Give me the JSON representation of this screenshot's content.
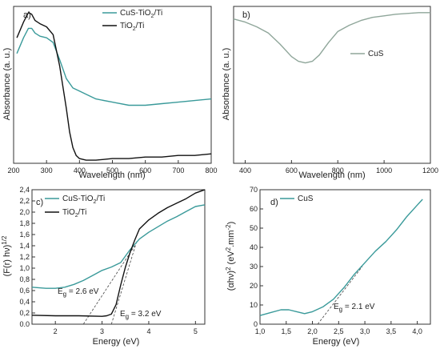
{
  "colors": {
    "teal": "#3a9a9a",
    "black": "#111111",
    "axis": "#333333"
  },
  "chart_data": [
    {
      "type": "line",
      "panel_label": "a)",
      "xlabel": "Wavelength (nm)",
      "ylabel": "Absorbance (a. u.)",
      "xlim": [
        200,
        800
      ],
      "ylim": [
        0,
        1
      ],
      "xticks": [
        200,
        300,
        400,
        500,
        600,
        700,
        800
      ],
      "y_ticks_shown": false,
      "legend": {
        "placement": "top-right",
        "entries": [
          {
            "series": 0,
            "label": "CuS-TiO",
            "sub": "2",
            "tail": "/Ti"
          },
          {
            "series": 1,
            "label": "TiO",
            "sub": "2",
            "tail": "/Ti"
          }
        ]
      },
      "series": [
        {
          "name": "CuS-TiO2/Ti",
          "color": "#3a9a9a",
          "x": [
            210,
            230,
            245,
            255,
            265,
            280,
            300,
            320,
            340,
            360,
            380,
            400,
            420,
            450,
            500,
            550,
            600,
            650,
            700,
            750,
            800
          ],
          "y": [
            0.7,
            0.8,
            0.86,
            0.86,
            0.83,
            0.81,
            0.8,
            0.77,
            0.66,
            0.54,
            0.48,
            0.46,
            0.44,
            0.41,
            0.39,
            0.37,
            0.37,
            0.38,
            0.39,
            0.4,
            0.41
          ]
        },
        {
          "name": "TiO2/Ti",
          "color": "#111111",
          "x": [
            210,
            230,
            245,
            255,
            265,
            280,
            300,
            320,
            340,
            360,
            370,
            380,
            390,
            400,
            420,
            450,
            500,
            550,
            600,
            650,
            700,
            750,
            800
          ],
          "y": [
            0.8,
            0.9,
            0.96,
            0.95,
            0.91,
            0.89,
            0.87,
            0.82,
            0.62,
            0.35,
            0.2,
            0.1,
            0.05,
            0.03,
            0.02,
            0.02,
            0.03,
            0.03,
            0.04,
            0.04,
            0.05,
            0.05,
            0.06
          ]
        }
      ]
    },
    {
      "type": "line",
      "panel_label": "b)",
      "xlabel": "Wavelength (nm)",
      "ylabel": "Absorbance (a. u.)",
      "xlim": [
        350,
        1200
      ],
      "ylim": [
        0,
        1
      ],
      "xticks": [
        400,
        600,
        800,
        1000,
        1200
      ],
      "y_ticks_shown": false,
      "legend": {
        "placement": "right",
        "entries": [
          {
            "series": 0,
            "label": "CuS",
            "sub": "",
            "tail": ""
          }
        ]
      },
      "series": [
        {
          "name": "CuS",
          "color": "#8fa69a",
          "x": [
            350,
            400,
            450,
            500,
            550,
            600,
            630,
            660,
            690,
            720,
            760,
            800,
            850,
            900,
            950,
            1000,
            1050,
            1100,
            1150,
            1200
          ],
          "y": [
            0.92,
            0.9,
            0.87,
            0.83,
            0.76,
            0.68,
            0.65,
            0.64,
            0.65,
            0.69,
            0.77,
            0.84,
            0.88,
            0.91,
            0.93,
            0.94,
            0.95,
            0.955,
            0.96,
            0.96
          ]
        }
      ]
    },
    {
      "type": "line",
      "panel_label": "c)",
      "xlabel": "Energy (eV)",
      "ylabel": "(F(r) hν)",
      "ylabel_sup": "1/2",
      "xlim": [
        1.5,
        5.2
      ],
      "ylim": [
        0.0,
        2.4
      ],
      "xticks": [
        2,
        3,
        4,
        5
      ],
      "yticks": [
        0.0,
        0.2,
        0.4,
        0.6,
        0.8,
        1.0,
        1.2,
        1.4,
        1.6,
        1.8,
        2.0,
        2.2,
        2.4
      ],
      "ytick_labels": [
        "0.0",
        "0,2",
        "0,4",
        "0,6",
        "0,8",
        "1,0",
        "1,2",
        "1,4",
        "1,6",
        "1,8",
        "2,0",
        "2,2",
        "2,4"
      ],
      "legend": {
        "placement": "top-left",
        "entries": [
          {
            "series": 0,
            "label": "CuS-TiO",
            "sub": "2",
            "tail": "/Ti"
          },
          {
            "series": 1,
            "label": "TiO",
            "sub": "2",
            "tail": "/Ti"
          }
        ]
      },
      "series": [
        {
          "name": "CuS-TiO2/Ti",
          "color": "#3a9a9a",
          "x": [
            1.5,
            1.8,
            2.0,
            2.2,
            2.4,
            2.6,
            2.8,
            3.0,
            3.2,
            3.4,
            3.6,
            3.8,
            4.0,
            4.2,
            4.4,
            4.6,
            4.8,
            5.0,
            5.2
          ],
          "y": [
            0.66,
            0.64,
            0.64,
            0.66,
            0.71,
            0.78,
            0.87,
            0.96,
            1.02,
            1.1,
            1.33,
            1.52,
            1.64,
            1.74,
            1.84,
            1.92,
            2.01,
            2.1,
            2.13
          ]
        },
        {
          "name": "TiO2/Ti",
          "color": "#111111",
          "x": [
            1.5,
            2.0,
            2.5,
            3.0,
            3.1,
            3.2,
            3.3,
            3.4,
            3.5,
            3.6,
            3.7,
            3.8,
            4.0,
            4.2,
            4.4,
            4.6,
            4.8,
            5.0,
            5.2
          ],
          "y": [
            0.16,
            0.15,
            0.15,
            0.14,
            0.15,
            0.18,
            0.35,
            0.7,
            1.02,
            1.28,
            1.5,
            1.7,
            1.86,
            1.98,
            2.08,
            2.16,
            2.24,
            2.34,
            2.4
          ]
        }
      ],
      "fit_lines": [
        {
          "x": [
            2.6,
            3.7
          ],
          "y": [
            0.0,
            1.4
          ]
        },
        {
          "x": [
            3.2,
            3.75
          ],
          "y": [
            0.0,
            1.5
          ]
        }
      ],
      "annotations": [
        {
          "text": "E",
          "sub": "g",
          "tail": " = 2.6 eV"
        },
        {
          "text": "E",
          "sub": "g",
          "tail": " = 3.2 eV"
        }
      ]
    },
    {
      "type": "line",
      "panel_label": "d)",
      "xlabel": "Energy (eV)",
      "ylabel": "(αhν)",
      "ylabel_sup": "2",
      "ylabel_tail": " (eV",
      "ylabel_sup2": "2",
      "ylabel_tail2": ".mm",
      "ylabel_sup3": "-2",
      "ylabel_tail3": ")",
      "xlim": [
        1.0,
        4.25
      ],
      "ylim": [
        0,
        70
      ],
      "xticks": [
        1.0,
        1.5,
        2.0,
        2.5,
        3.0,
        3.5,
        4.0
      ],
      "xtick_labels": [
        "1,0",
        "1,5",
        "2,0",
        "2,5",
        "3,0",
        "3,5",
        "4,0"
      ],
      "yticks": [
        0,
        10,
        20,
        30,
        40,
        50,
        60,
        70
      ],
      "legend": {
        "placement": "top-left",
        "entries": [
          {
            "series": 0,
            "label": "CuS",
            "sub": "",
            "tail": ""
          }
        ]
      },
      "series": [
        {
          "name": "CuS",
          "color": "#3a9a9a",
          "x": [
            1.0,
            1.2,
            1.4,
            1.55,
            1.7,
            1.85,
            2.0,
            2.2,
            2.4,
            2.6,
            2.8,
            3.0,
            3.2,
            3.4,
            3.6,
            3.8,
            4.0,
            4.1
          ],
          "y": [
            4.5,
            6.0,
            7.5,
            7.5,
            6.5,
            5.5,
            6.5,
            9.0,
            13.0,
            19.0,
            26.0,
            32.0,
            38.0,
            43.0,
            49.0,
            56.0,
            62.0,
            65.0
          ]
        }
      ],
      "fit_lines": [
        {
          "x": [
            2.1,
            2.95
          ],
          "y": [
            0.0,
            30.0
          ]
        }
      ],
      "annotations": [
        {
          "text": "E",
          "sub": "g",
          "tail": " = 2.1 eV"
        }
      ]
    }
  ]
}
